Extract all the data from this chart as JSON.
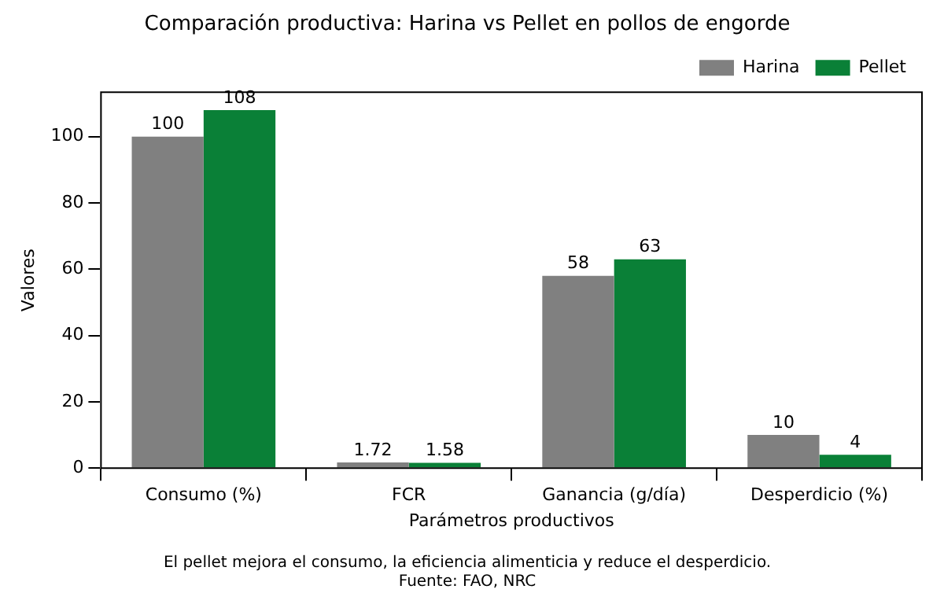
{
  "chart_data": {
    "type": "bar",
    "title": "Comparación productiva: Harina vs Pellet en pollos de engorde",
    "xlabel": "Parámetros productivos",
    "ylabel": "Valores",
    "categories": [
      "Consumo (%)",
      "FCR",
      "Ganancia (g/día)",
      "Desperdicio (%)"
    ],
    "series": [
      {
        "name": "Harina",
        "color": "#808080",
        "values": [
          100,
          1.72,
          58,
          10
        ]
      },
      {
        "name": "Pellet",
        "color": "#0a8037",
        "values": [
          108,
          1.58,
          63,
          4
        ]
      }
    ],
    "ylim": [
      0,
      113.4
    ],
    "yticks": [
      0,
      20,
      40,
      60,
      80,
      100
    ],
    "grid": false,
    "legend": "top right",
    "data_labels": true,
    "annotations": [
      "El pellet mejora el consumo, la eficiencia alimenticia y reduce el desperdicio.",
      "Fuente: FAO, NRC"
    ]
  }
}
